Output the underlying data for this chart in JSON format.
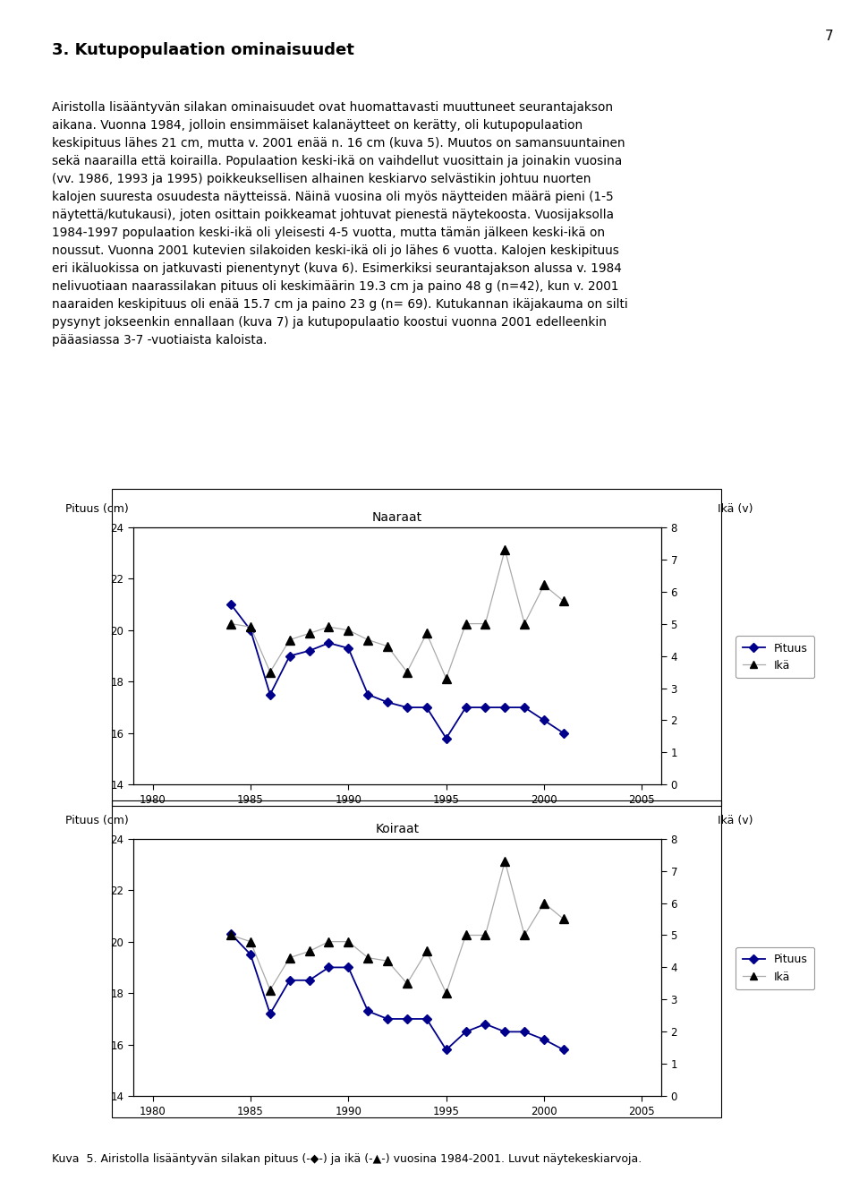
{
  "page_number": "7",
  "title_text": "3. Kutupopulaation ominaisuudet",
  "body_text": "Airistolla lisääntyvän silakan ominaisuudet ovat huomattavasti muuttuneet seurantajakson\naikana. Vuonna 1984, jolloin ensimmäiset kalanäytteet on kerätty, oli kutupopulaation\nkeskipituus lähes 21 cm, mutta v. 2001 enää n. 16 cm (kuva 5). Muutos on samansuuntainen\nsekä naarailla että koirailla. Populaation keski-ikä on vaihdellut vuosittain ja joinakin vuosina\n(vv. 1986, 1993 ja 1995) poikkeuksellisen alhainen keskiarvo selvästikin johtuu nuorten\nkalojen suuresta osuudesta näytteissä. Näinä vuosina oli myös näytteiden määrä pieni (1-5\nnäytettä/kutukausi), joten osittain poikkeamat johtuvat pienestä näytekoosta. Vuosijaksolla\n1984-1997 populaation keski-ikä oli yleisesti 4-5 vuotta, mutta tämän jälkeen keski-ikä on\nnoussut. Vuonna 2001 kutevien silakoiden keski-ikä oli jo lähes 6 vuotta. Kalojen keskipituus\neri ikäluokissa on jatkuvasti pienentynyt (kuva 6). Esimerkiksi seurantajakson alussa v. 1984\nnelivuotiaan naarassilakan pituus oli keskimäärin 19.3 cm ja paino 48 g (n=42), kun v. 2001\nnaaraiden keskipituus oli enää 15.7 cm ja paino 23 g (n= 69). Kutukannan ikäjakauma on silti\npysynyt jokseenkin ennallaan (kuva 7) ja kutupopulaatio koostui vuonna 2001 edelleenkin\npääasiassa 3-7 -vuotiaista kaloista.",
  "caption_text": "Kuva  5. Airistolla lisääntyvän silakan pituus (-◆-) ja ikä (-▲-) vuosina 1984-2001. Luvut näytekeskiarvoja.",
  "chart1_title": "Naaraat",
  "chart2_title": "Koiraat",
  "left_ylabel": "Pituus (cm)",
  "right_ylabel": "Ikä (v)",
  "xlim": [
    1979,
    2006
  ],
  "xticks": [
    1980,
    1985,
    1990,
    1995,
    2000,
    2005
  ],
  "ylim_left": [
    14,
    24
  ],
  "ylim_right": [
    0,
    8
  ],
  "yticks_left": [
    14,
    16,
    18,
    20,
    22,
    24
  ],
  "yticks_right": [
    0,
    1,
    2,
    3,
    4,
    5,
    6,
    7,
    8
  ],
  "naaraat_years": [
    1984,
    1985,
    1986,
    1987,
    1988,
    1989,
    1990,
    1991,
    1992,
    1993,
    1994,
    1995,
    1996,
    1997,
    1998,
    1999,
    2000,
    2001
  ],
  "naaraat_pituus": [
    21.0,
    20.0,
    17.5,
    19.0,
    19.2,
    19.5,
    19.3,
    17.5,
    17.2,
    17.0,
    17.0,
    15.8,
    17.0,
    17.0,
    17.0,
    17.0,
    16.5,
    16.0
  ],
  "naaraat_ika": [
    5.0,
    4.9,
    3.5,
    4.5,
    4.7,
    4.9,
    4.8,
    4.5,
    4.3,
    3.5,
    4.7,
    3.3,
    5.0,
    5.0,
    7.3,
    5.0,
    6.2,
    5.7
  ],
  "koiraat_years": [
    1984,
    1985,
    1986,
    1987,
    1988,
    1989,
    1990,
    1991,
    1992,
    1993,
    1994,
    1995,
    1996,
    1997,
    1998,
    1999,
    2000,
    2001
  ],
  "koiraat_pituus": [
    20.3,
    19.5,
    17.2,
    18.5,
    18.5,
    19.0,
    19.0,
    17.3,
    17.0,
    17.0,
    17.0,
    15.8,
    16.5,
    16.8,
    16.5,
    16.5,
    16.2,
    15.8
  ],
  "koiraat_ika": [
    5.0,
    4.8,
    3.3,
    4.3,
    4.5,
    4.8,
    4.8,
    4.3,
    4.2,
    3.5,
    4.5,
    3.2,
    5.0,
    5.0,
    7.3,
    5.0,
    6.0,
    5.5
  ],
  "line_color": "#00008B",
  "triangle_color": "#000000",
  "triangle_line_color": "#aaaaaa",
  "background_color": "#ffffff"
}
